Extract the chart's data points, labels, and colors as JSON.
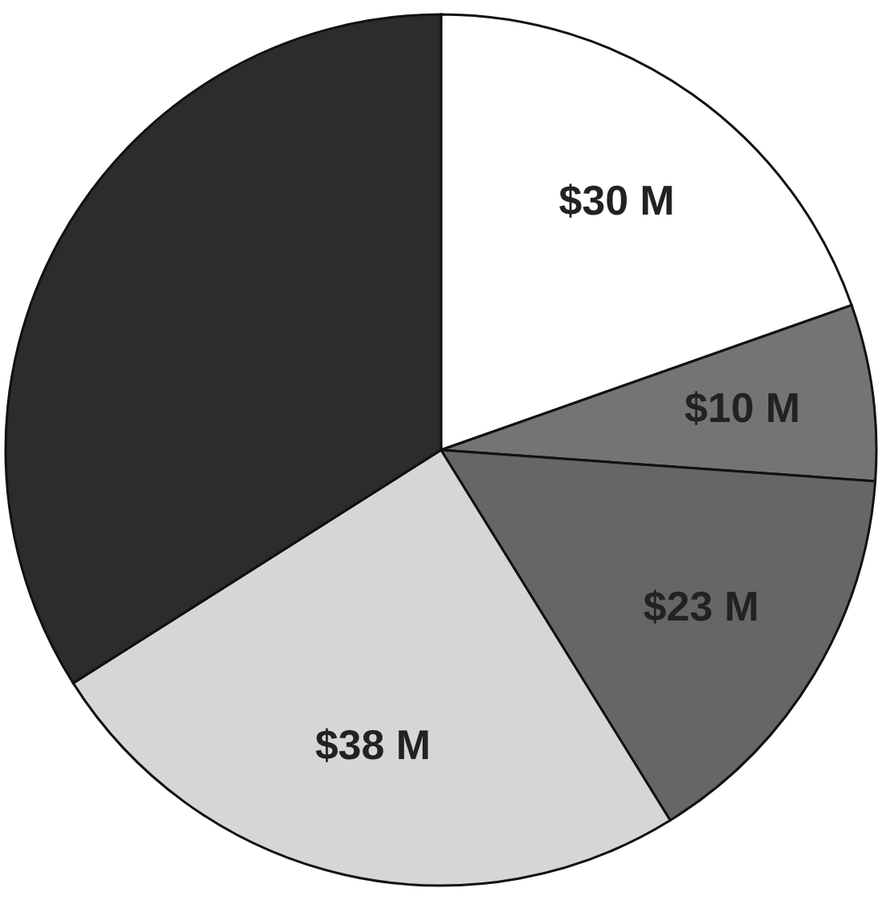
{
  "chart_data": {
    "type": "pie",
    "categories": [
      null,
      null,
      null,
      null,
      null
    ],
    "values": [
      30,
      10,
      23,
      38,
      52
    ],
    "colors": [
      "#ffffff",
      "#747474",
      "#666666",
      "#d6d6d6",
      "#2c2c2c"
    ],
    "value_labels": [
      "$30 M",
      "$10 M",
      "$23 M",
      "$38 M",
      null
    ]
  }
}
